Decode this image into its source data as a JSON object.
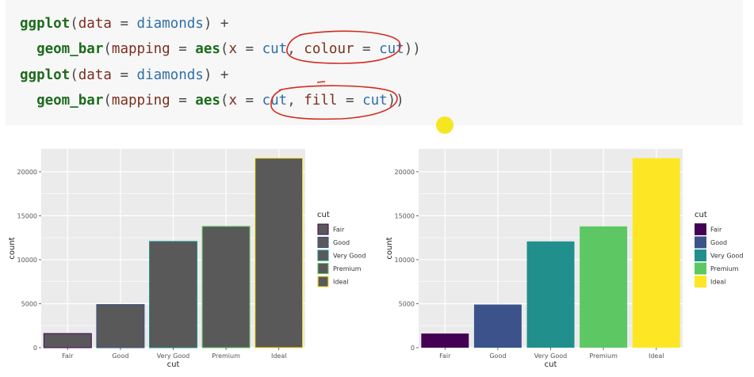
{
  "code": {
    "lines": [
      [
        {
          "t": "ggplot",
          "c": "fn"
        },
        {
          "t": "(",
          "c": "op"
        },
        {
          "t": "data",
          "c": "arg"
        },
        {
          "t": " = ",
          "c": "op"
        },
        {
          "t": "diamonds",
          "c": "val"
        },
        {
          "t": ") +",
          "c": "op"
        }
      ],
      [
        {
          "t": "  ",
          "c": "op"
        },
        {
          "t": "geom_bar",
          "c": "fn"
        },
        {
          "t": "(",
          "c": "op"
        },
        {
          "t": "mapping",
          "c": "arg"
        },
        {
          "t": " = ",
          "c": "op"
        },
        {
          "t": "aes",
          "c": "fn"
        },
        {
          "t": "(",
          "c": "op"
        },
        {
          "t": "x",
          "c": "arg"
        },
        {
          "t": " = ",
          "c": "op"
        },
        {
          "t": "cut",
          "c": "val"
        },
        {
          "t": ", ",
          "c": "op"
        },
        {
          "t": "colour",
          "c": "arg"
        },
        {
          "t": " = ",
          "c": "op"
        },
        {
          "t": "cut",
          "c": "val"
        },
        {
          "t": "))",
          "c": "op"
        }
      ],
      [
        {
          "t": "ggplot",
          "c": "fn"
        },
        {
          "t": "(",
          "c": "op"
        },
        {
          "t": "data",
          "c": "arg"
        },
        {
          "t": " = ",
          "c": "op"
        },
        {
          "t": "diamonds",
          "c": "val"
        },
        {
          "t": ") +",
          "c": "op"
        }
      ],
      [
        {
          "t": "  ",
          "c": "op"
        },
        {
          "t": "geom_bar",
          "c": "fn"
        },
        {
          "t": "(",
          "c": "op"
        },
        {
          "t": "mapping",
          "c": "arg"
        },
        {
          "t": " = ",
          "c": "op"
        },
        {
          "t": "aes",
          "c": "fn"
        },
        {
          "t": "(",
          "c": "op"
        },
        {
          "t": "x",
          "c": "arg"
        },
        {
          "t": " = ",
          "c": "op"
        },
        {
          "t": "cut",
          "c": "val"
        },
        {
          "t": ", ",
          "c": "op"
        },
        {
          "t": "fill",
          "c": "arg"
        },
        {
          "t": " = ",
          "c": "op"
        },
        {
          "t": "cut",
          "c": "val"
        },
        {
          "t": "))",
          "c": "op"
        }
      ]
    ]
  },
  "colors": {
    "panel_bg": "#ebebeb",
    "grid": "#ffffff",
    "bar_fill_grey": "#595959",
    "annotation_red": "#d42a1f",
    "cursor_yellow": "#f5e30a",
    "viridis": [
      "#440154",
      "#3b528b",
      "#21908c",
      "#5dc863",
      "#fde725"
    ]
  },
  "chart_data": [
    {
      "type": "bar",
      "mapping": "colour",
      "categories": [
        "Fair",
        "Good",
        "Very Good",
        "Premium",
        "Ideal"
      ],
      "values": [
        1610,
        4906,
        12082,
        13791,
        21551
      ],
      "xlabel": "cut",
      "ylabel": "count",
      "ylim": [
        0,
        22600
      ],
      "yticks": [
        0,
        5000,
        10000,
        15000,
        20000
      ],
      "grid": true,
      "legend": {
        "title": "cut",
        "position": "right",
        "entries": [
          "Fair",
          "Good",
          "Very Good",
          "Premium",
          "Ideal"
        ]
      }
    },
    {
      "type": "bar",
      "mapping": "fill",
      "categories": [
        "Fair",
        "Good",
        "Very Good",
        "Premium",
        "Ideal"
      ],
      "values": [
        1610,
        4906,
        12082,
        13791,
        21551
      ],
      "xlabel": "cut",
      "ylabel": "count",
      "ylim": [
        0,
        22600
      ],
      "yticks": [
        0,
        5000,
        10000,
        15000,
        20000
      ],
      "grid": true,
      "legend": {
        "title": "cut",
        "position": "right",
        "entries": [
          "Fair",
          "Good",
          "Very Good",
          "Premium",
          "Ideal"
        ]
      }
    }
  ]
}
